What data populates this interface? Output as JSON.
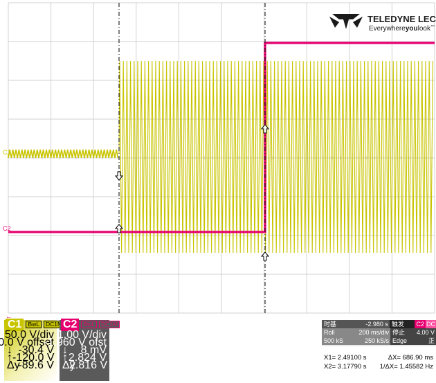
{
  "brand": {
    "name": "TELEDYNE LECROY",
    "tagline_pre": "Everywhere",
    "tagline_bold": "you",
    "tagline_post": "look",
    "tm": "™"
  },
  "colors": {
    "c1": "#c8c400",
    "c2": "#e6006f",
    "grid": "#d2d2d2",
    "cursor": "#000000"
  },
  "waveform_labels": {
    "c1": "C1",
    "c2": "C2"
  },
  "channels": [
    {
      "id": "C1",
      "tags": [
        "BwL",
        "DC1M"
      ],
      "scale": "50.0 V/div",
      "offset": "0.0 V offset",
      "rows": [
        {
          "sym": "↓",
          "val": "-30.4 V"
        },
        {
          "sym": "↑",
          "val": "-120.0 V"
        },
        {
          "sym": "Δy",
          "val": "-89.6 V"
        }
      ]
    },
    {
      "id": "C2",
      "tags": [
        "BwL",
        "DC1M"
      ],
      "scale": "1.00 V/div",
      "offset": "-1.960 V ofst",
      "rows": [
        {
          "sym": "↓",
          "val": "8 mV"
        },
        {
          "sym": "↑",
          "val": "2.824 V"
        },
        {
          "sym": "Δy",
          "val": "2.816 V"
        }
      ]
    }
  ],
  "timebase": {
    "title": "时基",
    "delay": "-2.980 s",
    "mode": "Roll",
    "tdiv": "200 ms/div",
    "samples": "500 kS",
    "rate": "250 kS/s"
  },
  "trigger": {
    "title": "触发",
    "source": "C2",
    "coupling": "DC",
    "state": "停止",
    "level": "4.00 V",
    "type": "Edge",
    "slope": "正"
  },
  "cursors": {
    "x1": "X1= 2.49100 s",
    "dx": "ΔX= 686.90 ms",
    "x2": "X2= 3.17790 s",
    "inv_dx": "1/ΔX= 1.45582 Hz"
  },
  "icons": {
    "brand_logo": "teledyne-logo-icon",
    "cursor_arrow": "cursor-arrow-icon",
    "back": "back-arrow-icon"
  }
}
